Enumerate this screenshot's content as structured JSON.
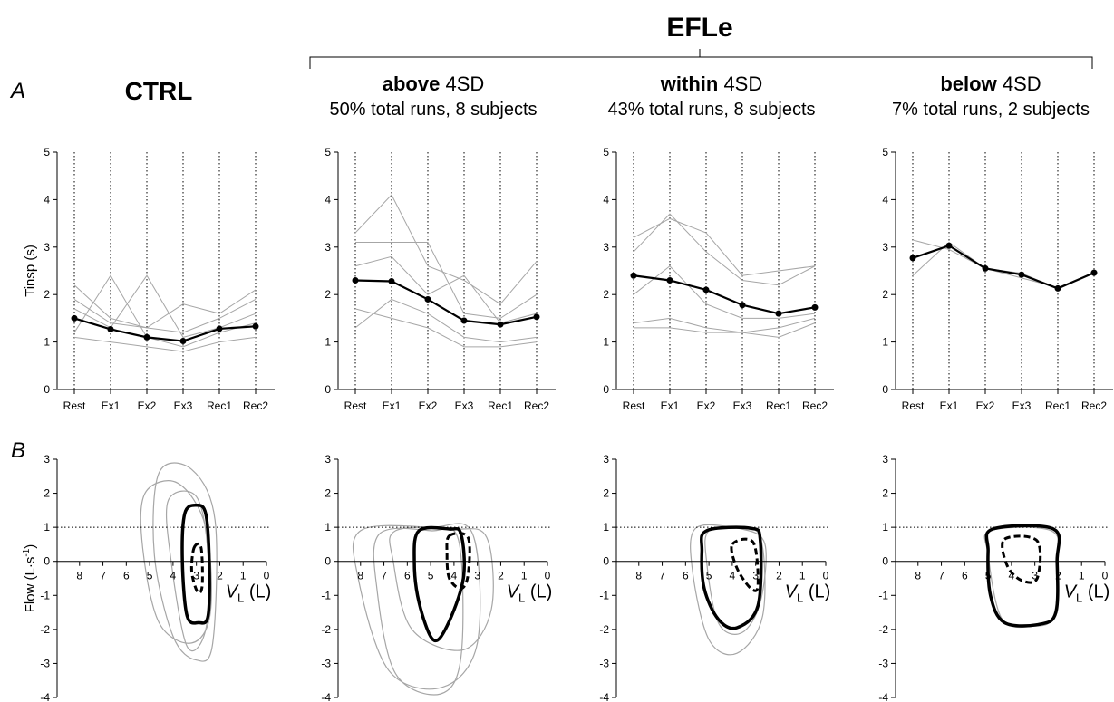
{
  "header": {
    "title": "EFLe"
  },
  "panel_labels": [
    "A",
    "B"
  ],
  "chart_data": [
    {
      "type": "line",
      "title": "CTRL",
      "ylabel": "Tinsp (s)",
      "categories": [
        "Rest",
        "Ex1",
        "Ex2",
        "Ex3",
        "Rec1",
        "Rec2"
      ],
      "ylim": [
        0,
        5
      ],
      "yticks": [
        0,
        1,
        2,
        3,
        4,
        5
      ],
      "series": [
        {
          "color": "#a6a6a6",
          "values": [
            2.2,
            1.5,
            1.3,
            1.2,
            1.5,
            1.9
          ]
        },
        {
          "color": "#a6a6a6",
          "values": [
            1.2,
            2.4,
            1.1,
            0.9,
            1.2,
            1.4
          ]
        },
        {
          "color": "#a6a6a6",
          "values": [
            1.7,
            1.3,
            2.4,
            1.1,
            1.3,
            1.6
          ]
        },
        {
          "color": "#a6a6a6",
          "values": [
            1.1,
            1.0,
            0.9,
            0.8,
            1.0,
            1.1
          ]
        },
        {
          "color": "#a6a6a6",
          "values": [
            1.9,
            1.4,
            1.3,
            1.8,
            1.6,
            2.1
          ]
        },
        {
          "color": "#000000",
          "values": [
            1.5,
            1.27,
            1.1,
            1.02,
            1.28,
            1.33
          ],
          "markers": true
        }
      ]
    },
    {
      "type": "line",
      "title": "above",
      "title_suffix": "4SD",
      "subtitle": "50% total runs, 8 subjects",
      "categories": [
        "Rest",
        "Ex1",
        "Ex2",
        "Ex3",
        "Rec1",
        "Rec2"
      ],
      "ylim": [
        0,
        5
      ],
      "yticks": [
        0,
        1,
        2,
        3,
        4,
        5
      ],
      "series": [
        {
          "color": "#a6a6a6",
          "values": [
            3.3,
            4.1,
            2.6,
            2.3,
            1.8,
            2.7
          ]
        },
        {
          "color": "#a6a6a6",
          "values": [
            1.3,
            1.9,
            1.6,
            1.1,
            1.0,
            1.1
          ]
        },
        {
          "color": "#a6a6a6",
          "values": [
            3.1,
            3.1,
            3.1,
            1.6,
            1.5,
            2.0
          ]
        },
        {
          "color": "#a6a6a6",
          "values": [
            1.7,
            1.5,
            1.3,
            0.9,
            0.9,
            1.0
          ]
        },
        {
          "color": "#a6a6a6",
          "values": [
            2.6,
            2.8,
            2.0,
            2.4,
            1.4,
            1.6
          ]
        },
        {
          "color": "#000000",
          "values": [
            2.3,
            2.28,
            1.9,
            1.45,
            1.37,
            1.53
          ],
          "markers": true
        }
      ]
    },
    {
      "type": "line",
      "title": "within",
      "title_suffix": "4SD",
      "subtitle": "43% total runs, 8 subjects",
      "categories": [
        "Rest",
        "Ex1",
        "Ex2",
        "Ex3",
        "Rec1",
        "Rec2"
      ],
      "ylim": [
        0,
        5
      ],
      "yticks": [
        0,
        1,
        2,
        3,
        4,
        5
      ],
      "series": [
        {
          "color": "#a6a6a6",
          "values": [
            3.2,
            3.6,
            3.3,
            2.4,
            2.5,
            2.6
          ]
        },
        {
          "color": "#a6a6a6",
          "values": [
            1.4,
            1.5,
            1.3,
            1.2,
            1.1,
            1.4
          ]
        },
        {
          "color": "#a6a6a6",
          "values": [
            2.9,
            3.7,
            2.9,
            2.3,
            2.2,
            2.6
          ]
        },
        {
          "color": "#a6a6a6",
          "values": [
            1.3,
            1.3,
            1.2,
            1.2,
            1.3,
            1.5
          ]
        },
        {
          "color": "#a6a6a6",
          "values": [
            2.0,
            2.6,
            1.8,
            1.5,
            1.5,
            1.6
          ]
        },
        {
          "color": "#000000",
          "values": [
            2.4,
            2.3,
            2.1,
            1.78,
            1.6,
            1.73
          ],
          "markers": true
        }
      ]
    },
    {
      "type": "line",
      "title": "below",
      "title_suffix": "4SD",
      "subtitle": "7% total runs, 2 subjects",
      "categories": [
        "Rest",
        "Ex1",
        "Ex2",
        "Ex3",
        "Rec1",
        "Rec2"
      ],
      "ylim": [
        0,
        5
      ],
      "yticks": [
        0,
        1,
        2,
        3,
        4,
        5
      ],
      "series": [
        {
          "color": "#a6a6a6",
          "values": [
            2.4,
            3.1,
            2.55,
            2.45,
            2.12,
            2.46
          ]
        },
        {
          "color": "#a6a6a6",
          "values": [
            3.15,
            2.95,
            2.55,
            2.35,
            2.15,
            2.46
          ]
        },
        {
          "color": "#000000",
          "values": [
            2.77,
            3.03,
            2.55,
            2.42,
            2.13,
            2.46
          ],
          "markers": true
        }
      ]
    },
    {
      "type": "loop",
      "ylabel": {
        "text": "Flow (L·s",
        "sup": "-1",
        "end": ")"
      },
      "xlabel": {
        "text": "V",
        "sub": "L",
        "end": " (L)"
      },
      "xlim": [
        9,
        0
      ],
      "xticks": [
        8,
        7,
        6,
        5,
        4,
        3,
        2,
        1,
        0
      ],
      "ylim": [
        -4,
        3
      ],
      "yticks": [
        -4,
        -3,
        -2,
        -1,
        0,
        1,
        2,
        3
      ],
      "ref_line": 1,
      "series": [
        {
          "color": "#a6a6a6",
          "width": 1.2,
          "x": [
            4.6,
            3.2,
            2.2,
            2.3,
            3.0,
            4.0,
            4.8
          ],
          "y": [
            2.6,
            2.7,
            1.2,
            -2.4,
            -2.9,
            -2.2,
            0.2
          ]
        },
        {
          "color": "#a6a6a6",
          "width": 1.2,
          "x": [
            5.2,
            3.8,
            2.6,
            2.4,
            3.2,
            4.6,
            5.3
          ],
          "y": [
            2.0,
            2.3,
            1.0,
            -1.5,
            -2.4,
            -1.8,
            0.4
          ]
        },
        {
          "color": "#a6a6a6",
          "width": 1.2,
          "x": [
            4.2,
            3.0,
            2.5,
            2.6,
            3.4,
            4.1
          ],
          "y": [
            1.8,
            1.9,
            0.2,
            -2.0,
            -2.5,
            0.1
          ]
        },
        {
          "color": "#000000",
          "width": 3.5,
          "x": [
            3.5,
            3.0,
            2.6,
            2.45,
            2.5,
            2.9,
            3.4,
            3.6
          ],
          "y": [
            1.4,
            1.65,
            1.4,
            0,
            -1.6,
            -1.8,
            -1.6,
            0
          ]
        },
        {
          "color": "#000000",
          "width": 3,
          "style": "dashed",
          "x": [
            3.1,
            2.8,
            2.75,
            2.95,
            3.2
          ],
          "y": [
            0.4,
            0.4,
            -0.7,
            -0.9,
            -0.3
          ]
        }
      ]
    },
    {
      "type": "loop",
      "xlabel": {
        "text": "V",
        "sub": "L",
        "end": " (L)"
      },
      "xlim": [
        9,
        0
      ],
      "xticks": [
        8,
        7,
        6,
        5,
        4,
        3,
        2,
        1,
        0
      ],
      "ylim": [
        -4,
        3
      ],
      "yticks": [
        -4,
        -3,
        -2,
        -1,
        0,
        1,
        2,
        3
      ],
      "ref_line": 1,
      "series": [
        {
          "color": "#a6a6a6",
          "width": 1.2,
          "x": [
            8.0,
            5.0,
            3.2,
            3.0,
            4.5,
            6.8,
            8.1
          ],
          "y": [
            0.9,
            1.0,
            0.8,
            -2.4,
            -3.7,
            -3.2,
            -0.5
          ]
        },
        {
          "color": "#a6a6a6",
          "width": 1.2,
          "x": [
            6.5,
            4.0,
            2.6,
            2.4,
            3.6,
            5.8,
            6.6
          ],
          "y": [
            0.9,
            0.95,
            0.7,
            -1.4,
            -2.6,
            -2.0,
            0
          ]
        },
        {
          "color": "#a6a6a6",
          "width": 1.2,
          "x": [
            7.2,
            5.0,
            3.8,
            3.7,
            4.6,
            6.5,
            7.3
          ],
          "y": [
            0.8,
            0.9,
            0.6,
            -2.8,
            -3.9,
            -3.3,
            -0.8
          ]
        },
        {
          "color": "#000000",
          "width": 3.5,
          "x": [
            5.5,
            4.2,
            3.7,
            3.6,
            4.3,
            4.9,
            5.5,
            5.7
          ],
          "y": [
            0.9,
            0.95,
            0.8,
            -0.5,
            -1.9,
            -2.3,
            -1.2,
            0
          ]
        },
        {
          "color": "#000000",
          "width": 3,
          "style": "dashed",
          "x": [
            4.2,
            3.4,
            3.4,
            3.7,
            4.2,
            4.3
          ],
          "y": [
            0.75,
            0.7,
            -0.4,
            -0.8,
            -0.5,
            0.2
          ]
        }
      ]
    },
    {
      "type": "loop",
      "xlabel": {
        "text": "V",
        "sub": "L",
        "end": " (L)"
      },
      "xlim": [
        9,
        0
      ],
      "xticks": [
        8,
        7,
        6,
        5,
        4,
        3,
        2,
        1,
        0
      ],
      "ylim": [
        -4,
        3
      ],
      "yticks": [
        -4,
        -3,
        -2,
        -1,
        0,
        1,
        2,
        3
      ],
      "ref_line": 1,
      "series": [
        {
          "color": "#a6a6a6",
          "width": 1.2,
          "x": [
            5.6,
            4.0,
            2.8,
            2.7,
            3.8,
            5.0,
            5.7
          ],
          "y": [
            0.95,
            1.0,
            0.7,
            -1.6,
            -2.7,
            -2.3,
            -0.3
          ]
        },
        {
          "color": "#a6a6a6",
          "width": 1.2,
          "x": [
            5.0,
            3.6,
            2.6,
            2.8,
            3.6,
            4.6,
            5.1
          ],
          "y": [
            0.9,
            0.95,
            0.5,
            -1.2,
            -2.1,
            -1.8,
            0
          ]
        },
        {
          "color": "#000000",
          "width": 3.5,
          "x": [
            5.1,
            3.2,
            2.8,
            2.9,
            3.8,
            4.6,
            5.2,
            5.3
          ],
          "y": [
            0.9,
            0.97,
            0.6,
            -1.3,
            -1.95,
            -1.7,
            -0.8,
            0.3
          ]
        },
        {
          "color": "#000000",
          "width": 3,
          "style": "dashed",
          "x": [
            4.0,
            3.1,
            2.9,
            3.2,
            3.8
          ],
          "y": [
            0.5,
            0.55,
            -0.7,
            -0.8,
            -0.2
          ]
        }
      ]
    },
    {
      "type": "loop",
      "xlabel": {
        "text": "V",
        "sub": "L",
        "end": " (L)"
      },
      "xlim": [
        9,
        0
      ],
      "xticks": [
        8,
        7,
        6,
        5,
        4,
        3,
        2,
        1,
        0
      ],
      "ylim": [
        -4,
        3
      ],
      "yticks": [
        -4,
        -3,
        -2,
        -1,
        0,
        1,
        2,
        3
      ],
      "ref_line": 1,
      "series": [
        {
          "color": "#a6a6a6",
          "width": 1.2,
          "x": [
            4.9,
            2.3,
            2.0,
            2.2,
            3.0,
            4.4,
            5.0
          ],
          "y": [
            0.9,
            0.9,
            0,
            -1.6,
            -1.9,
            -1.7,
            0.2
          ]
        },
        {
          "color": "#000000",
          "width": 3.5,
          "x": [
            4.8,
            2.2,
            2.05,
            2.1,
            2.8,
            4.3,
            4.9,
            5.0
          ],
          "y": [
            0.95,
            0.95,
            0,
            -1.5,
            -1.85,
            -1.8,
            -1.0,
            0.3
          ]
        },
        {
          "color": "#000000",
          "width": 3,
          "style": "dashed",
          "x": [
            4.3,
            2.9,
            2.9,
            3.6,
            4.2
          ],
          "y": [
            0.65,
            0.6,
            -0.5,
            -0.55,
            -0.1
          ]
        }
      ]
    }
  ]
}
